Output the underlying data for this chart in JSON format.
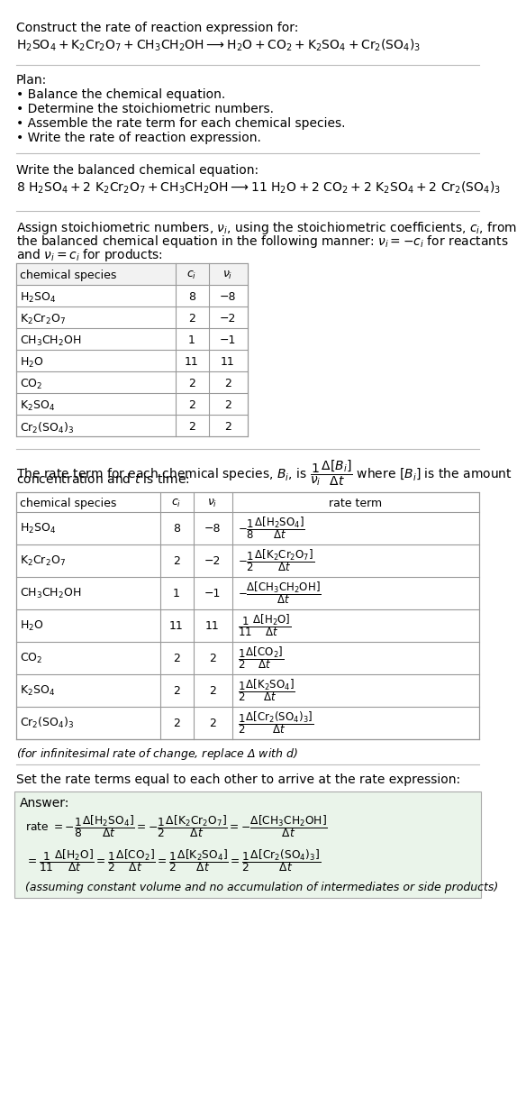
{
  "bg_color": "#ffffff",
  "title_line1": "Construct the rate of reaction expression for:",
  "reaction_unbalanced": "$\\mathrm{H_2SO_4 + K_2Cr_2O_7 + CH_3CH_2OH \\longrightarrow H_2O + CO_2 + K_2SO_4 + Cr_2(SO_4)_3}$",
  "plan_header": "Plan:",
  "plan_items": [
    "• Balance the chemical equation.",
    "• Determine the stoichiometric numbers.",
    "• Assemble the rate term for each chemical species.",
    "• Write the rate of reaction expression."
  ],
  "balanced_header": "Write the balanced chemical equation:",
  "reaction_balanced": "$\\mathrm{8\\ H_2SO_4 + 2\\ K_2Cr_2O_7 + CH_3CH_2OH \\longrightarrow 11\\ H_2O + 2\\ CO_2 + 2\\ K_2SO_4 + 2\\ Cr_2(SO_4)_3}$",
  "stoich_intro": "Assign stoichiometric numbers, $\\nu_i$, using the stoichiometric coefficients, $c_i$, from the balanced chemical equation in the following manner: $\\nu_i = -c_i$ for reactants and $\\nu_i = c_i$ for products:",
  "table1_col0": [
    "$\\mathrm{H_2SO_4}$",
    "$\\mathrm{K_2Cr_2O_7}$",
    "$\\mathrm{CH_3CH_2OH}$",
    "$\\mathrm{H_2O}$",
    "$\\mathrm{CO_2}$",
    "$\\mathrm{K_2SO_4}$",
    "$\\mathrm{Cr_2(SO_4)_3}$"
  ],
  "table1_col1": [
    "8",
    "2",
    "1",
    "11",
    "2",
    "2",
    "2"
  ],
  "table1_col2": [
    "−8",
    "−2",
    "−1",
    "11",
    "2",
    "2",
    "2"
  ],
  "rate_intro1": "The rate term for each chemical species, $B_i$, is $\\dfrac{1}{\\nu_i}\\dfrac{\\Delta[B_i]}{\\Delta t}$ where $[B_i]$ is the amount",
  "rate_intro2": "concentration and $t$ is time:",
  "table2_col0": [
    "$\\mathrm{H_2SO_4}$",
    "$\\mathrm{K_2Cr_2O_7}$",
    "$\\mathrm{CH_3CH_2OH}$",
    "$\\mathrm{H_2O}$",
    "$\\mathrm{CO_2}$",
    "$\\mathrm{K_2SO_4}$",
    "$\\mathrm{Cr_2(SO_4)_3}$"
  ],
  "table2_col1": [
    "8",
    "2",
    "1",
    "11",
    "2",
    "2",
    "2"
  ],
  "table2_col2": [
    "−8",
    "−2",
    "−1",
    "11",
    "2",
    "2",
    "2"
  ],
  "table2_col3": [
    "$-\\dfrac{1}{8}\\dfrac{\\Delta[\\mathrm{H_2SO_4}]}{\\Delta t}$",
    "$-\\dfrac{1}{2}\\dfrac{\\Delta[\\mathrm{K_2Cr_2O_7}]}{\\Delta t}$",
    "$-\\dfrac{\\Delta[\\mathrm{CH_3CH_2OH}]}{\\Delta t}$",
    "$\\dfrac{1}{11}\\dfrac{\\Delta[\\mathrm{H_2O}]}{\\Delta t}$",
    "$\\dfrac{1}{2}\\dfrac{\\Delta[\\mathrm{CO_2}]}{\\Delta t}$",
    "$\\dfrac{1}{2}\\dfrac{\\Delta[\\mathrm{K_2SO_4}]}{\\Delta t}$",
    "$\\dfrac{1}{2}\\dfrac{\\Delta[\\mathrm{Cr_2(SO_4)_3}]}{\\Delta t}$"
  ],
  "infinitesimal_note": "(for infinitesimal rate of change, replace Δ with $d$)",
  "set_equal_header": "Set the rate terms equal to each other to arrive at the rate expression:",
  "answer_label": "Answer:",
  "answer_box_color": "#eaf4ea",
  "answer_line1": "rate $= -\\dfrac{1}{8}\\dfrac{\\Delta[\\mathrm{H_2SO_4}]}{\\Delta t} = -\\dfrac{1}{2}\\dfrac{\\Delta[\\mathrm{K_2Cr_2O_7}]}{\\Delta t} = -\\dfrac{\\Delta[\\mathrm{CH_3CH_2OH}]}{\\Delta t}$",
  "answer_line2": "$= \\dfrac{1}{11}\\dfrac{\\Delta[\\mathrm{H_2O}]}{\\Delta t} = \\dfrac{1}{2}\\dfrac{\\Delta[\\mathrm{CO_2}]}{\\Delta t} = \\dfrac{1}{2}\\dfrac{\\Delta[\\mathrm{K_2SO_4}]}{\\Delta t} = \\dfrac{1}{2}\\dfrac{\\Delta[\\mathrm{Cr_2(SO_4)_3}]}{\\Delta t}$",
  "answer_note": "(assuming constant volume and no accumulation of intermediates or side products)"
}
